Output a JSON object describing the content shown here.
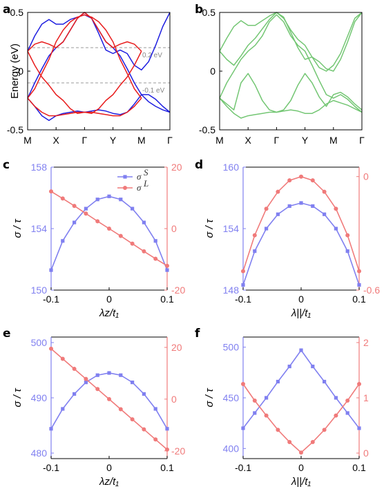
{
  "colors": {
    "blue": "#1e1ee0",
    "red": "#e81c1c",
    "green": "#73c673",
    "left": "#8080f0",
    "right": "#f07a7a",
    "axis": "#000000",
    "dash": "#9a9a9a"
  },
  "chart_data": [
    {
      "panel": "a",
      "type": "line",
      "ylabel": "Energy (eV)",
      "ylim": [
        -0.5,
        0.5
      ],
      "yticks": [
        "0.5",
        "0",
        "-0.5"
      ],
      "kpoints": [
        "M",
        "X",
        "Γ",
        "Y",
        "M",
        "Γ"
      ],
      "annotations": [
        "0.2 eV",
        "-0.1 eV"
      ],
      "series": [
        {
          "color": "blue",
          "x": [
            0,
            0.25,
            0.5,
            0.75,
            1,
            1.25,
            1.5,
            1.75,
            2,
            2.25,
            2.5,
            2.75,
            3,
            3.25,
            3.5,
            3.75,
            4,
            4.25,
            4.5,
            4.75,
            5
          ],
          "values": [
            0.17,
            0.3,
            0.4,
            0.44,
            0.4,
            0.4,
            0.44,
            0.46,
            0.48,
            0.45,
            0.32,
            0.18,
            0.15,
            0.18,
            0.15,
            0.05,
            0.01,
            0.08,
            0.22,
            0.38,
            0.5
          ]
        },
        {
          "color": "blue",
          "x": [
            0,
            0.25,
            0.5,
            0.75,
            1,
            1.25,
            1.5,
            1.75,
            2,
            2.25,
            2.5,
            2.75,
            3,
            3.25,
            3.5,
            3.75,
            4,
            4.25,
            4.5,
            4.75,
            5
          ],
          "values": [
            -0.23,
            -0.1,
            0.02,
            0.13,
            0.2,
            0.25,
            0.35,
            0.45,
            0.5,
            0.45,
            0.35,
            0.25,
            0.2,
            0.13,
            0.02,
            -0.1,
            -0.2,
            -0.26,
            -0.3,
            -0.33,
            -0.35
          ]
        },
        {
          "color": "blue",
          "x": [
            0,
            0.25,
            0.5,
            0.75,
            1,
            1.25,
            1.5,
            1.75,
            2,
            2.25,
            2.5,
            2.75,
            3,
            3.25,
            3.5,
            3.75,
            4,
            4.25,
            4.5,
            4.75,
            5
          ],
          "values": [
            -0.23,
            -0.3,
            -0.38,
            -0.42,
            -0.38,
            -0.36,
            -0.35,
            -0.34,
            -0.35,
            -0.34,
            -0.33,
            -0.34,
            -0.36,
            -0.37,
            -0.35,
            -0.28,
            -0.2,
            -0.2,
            -0.24,
            -0.3,
            -0.35
          ]
        },
        {
          "color": "red",
          "x": [
            0,
            0.25,
            0.5,
            0.75,
            1,
            1.25,
            1.5,
            1.75,
            2,
            2.25,
            2.5,
            2.75,
            3,
            3.25,
            3.5,
            3.75,
            4
          ],
          "values": [
            0.17,
            0.23,
            0.25,
            0.23,
            0.2,
            0.25,
            0.35,
            0.45,
            0.5,
            0.45,
            0.35,
            0.25,
            0.2,
            0.23,
            0.25,
            0.23,
            0.17
          ]
        },
        {
          "color": "red",
          "x": [
            0,
            0.25,
            0.5,
            0.75,
            1,
            1.25,
            1.5,
            1.75,
            2,
            2.25,
            2.5,
            2.75,
            3,
            3.25,
            3.5,
            3.75,
            4
          ],
          "values": [
            -0.23,
            -0.3,
            -0.35,
            -0.38,
            -0.38,
            -0.37,
            -0.36,
            -0.35,
            -0.35,
            -0.35,
            -0.36,
            -0.37,
            -0.38,
            -0.38,
            -0.35,
            -0.3,
            -0.23
          ]
        },
        {
          "color": "red",
          "x": [
            0,
            0.25,
            0.5,
            0.75,
            1,
            1.25,
            1.5,
            1.75,
            2,
            2.25,
            2.5,
            2.75,
            3,
            3.25,
            3.5,
            3.75,
            4
          ],
          "values": [
            0.17,
            0.05,
            -0.05,
            -0.12,
            -0.2,
            -0.25,
            -0.32,
            -0.36,
            -0.35,
            -0.36,
            -0.32,
            -0.25,
            -0.2,
            -0.12,
            -0.05,
            0.05,
            0.17
          ]
        },
        {
          "color": "red",
          "x": [
            0,
            0.25,
            0.5,
            0.75,
            1,
            1.25,
            1.5,
            1.75,
            2,
            2.25,
            2.5,
            2.75,
            3,
            3.25,
            3.5,
            3.75,
            4
          ],
          "values": [
            -0.23,
            -0.15,
            -0.02,
            0.1,
            0.25,
            0.35,
            0.42,
            0.46,
            0.48,
            0.46,
            0.42,
            0.35,
            0.25,
            0.1,
            -0.02,
            -0.15,
            -0.23
          ]
        }
      ]
    },
    {
      "panel": "b",
      "type": "line",
      "ylim": [
        -0.5,
        0.5
      ],
      "yticks": [
        "0.5",
        "0",
        "-0.5"
      ],
      "kpoints": [
        "M",
        "X",
        "Γ",
        "Y",
        "M",
        "Γ"
      ],
      "series": [
        {
          "color": "green",
          "x": [
            0,
            0.25,
            0.5,
            0.75,
            1,
            1.25,
            1.5,
            1.75,
            2,
            2.25,
            2.5,
            2.75,
            3,
            3.25,
            3.5,
            3.75,
            4,
            4.25,
            4.5,
            4.75,
            5
          ],
          "values": [
            0.17,
            0.28,
            0.38,
            0.43,
            0.39,
            0.39,
            0.43,
            0.47,
            0.5,
            0.46,
            0.33,
            0.2,
            0.1,
            0.12,
            0.08,
            0.02,
            0.0,
            0.1,
            0.25,
            0.42,
            0.5
          ]
        },
        {
          "color": "green",
          "x": [
            0,
            0.25,
            0.5,
            0.75,
            1,
            1.25,
            1.5,
            1.75,
            2,
            2.25,
            2.5,
            2.75,
            3,
            3.25,
            3.5,
            3.75,
            4,
            4.25,
            4.5,
            4.75,
            5
          ],
          "values": [
            0.17,
            0.1,
            0.05,
            0.13,
            0.22,
            0.28,
            0.36,
            0.44,
            0.5,
            0.45,
            0.35,
            0.27,
            0.22,
            0.12,
            0.03,
            0.0,
            0.05,
            0.15,
            0.3,
            0.45,
            0.5
          ]
        },
        {
          "color": "green",
          "x": [
            0,
            0.25,
            0.5,
            0.75,
            1,
            1.25,
            1.5,
            1.75,
            2,
            2.25,
            2.5,
            2.75,
            3,
            3.25,
            3.5,
            3.75,
            4,
            4.25,
            4.5,
            4.75,
            5
          ],
          "values": [
            -0.23,
            -0.1,
            0.0,
            0.1,
            0.17,
            0.22,
            0.3,
            0.42,
            0.48,
            0.42,
            0.3,
            0.22,
            0.17,
            0.05,
            -0.08,
            -0.2,
            -0.23,
            -0.2,
            -0.24,
            -0.3,
            -0.35
          ]
        },
        {
          "color": "green",
          "x": [
            0,
            0.25,
            0.5,
            0.75,
            1,
            1.25,
            1.5,
            1.75,
            2,
            2.25,
            2.5,
            2.75,
            3,
            3.25,
            3.5,
            3.75,
            4,
            4.25,
            4.5,
            4.75,
            5
          ],
          "values": [
            -0.23,
            -0.28,
            -0.33,
            -0.1,
            -0.02,
            -0.12,
            -0.25,
            -0.33,
            -0.35,
            -0.33,
            -0.25,
            -0.12,
            -0.02,
            -0.1,
            -0.22,
            -0.3,
            -0.2,
            -0.18,
            -0.22,
            -0.28,
            -0.33
          ]
        },
        {
          "color": "green",
          "x": [
            0,
            0.25,
            0.5,
            0.75,
            1,
            1.25,
            1.5,
            1.75,
            2,
            2.25,
            2.5,
            2.75,
            3,
            3.25,
            3.5,
            3.75,
            4,
            4.25,
            4.5,
            4.75,
            5
          ],
          "values": [
            -0.23,
            -0.3,
            -0.36,
            -0.4,
            -0.38,
            -0.37,
            -0.36,
            -0.35,
            -0.35,
            -0.34,
            -0.33,
            -0.34,
            -0.36,
            -0.36,
            -0.33,
            -0.28,
            -0.25,
            -0.27,
            -0.29,
            -0.32,
            -0.35
          ]
        }
      ]
    },
    {
      "panel": "c",
      "type": "line",
      "xlabel": "λz/t₁",
      "ylabel": "σ / τ",
      "x": [
        -0.1,
        -0.08,
        -0.06,
        -0.04,
        -0.02,
        0,
        0.02,
        0.04,
        0.06,
        0.08,
        0.1
      ],
      "xlim": [
        -0.1,
        0.1
      ],
      "xticks": [
        "-0.1",
        "0",
        "0.1"
      ],
      "ylim_left": [
        150,
        158
      ],
      "yticks_left": [
        "158",
        "154",
        "150"
      ],
      "ylim_right": [
        -20,
        20
      ],
      "yticks_right": [
        "20",
        "0",
        "-20"
      ],
      "legend": [
        "σ",
        "σ"
      ],
      "legend_sup": [
        "S",
        "L"
      ],
      "series": [
        {
          "axis": "left",
          "marker": "square",
          "values": [
            151.3,
            153.2,
            154.4,
            155.3,
            155.9,
            156.1,
            155.9,
            155.3,
            154.4,
            153.2,
            151.3
          ]
        },
        {
          "axis": "right",
          "marker": "circle",
          "values": [
            12.1,
            9.8,
            7.4,
            4.9,
            2.4,
            0,
            -2.4,
            -4.9,
            -7.4,
            -9.8,
            -12.1
          ]
        }
      ]
    },
    {
      "panel": "d",
      "type": "line",
      "xlabel": "λ||/t₁",
      "ylabel": "σ / τ",
      "x": [
        -0.1,
        -0.08,
        -0.06,
        -0.04,
        -0.02,
        0,
        0.02,
        0.04,
        0.06,
        0.08,
        0.1
      ],
      "xlim": [
        -0.1,
        0.1
      ],
      "xticks": [
        "-0.1",
        "0",
        "0.1"
      ],
      "ylim_left": [
        148,
        160
      ],
      "yticks_left": [
        "160",
        "154",
        "148"
      ],
      "ylim_right": [
        -0.6,
        0.05
      ],
      "yticks_right": [
        "0",
        "-0.6"
      ],
      "series": [
        {
          "axis": "left",
          "marker": "square",
          "values": [
            148.5,
            151.8,
            154.0,
            155.4,
            156.2,
            156.5,
            156.2,
            155.4,
            154.0,
            151.8,
            148.5
          ]
        },
        {
          "axis": "right",
          "marker": "circle",
          "values": [
            -0.5,
            -0.31,
            -0.17,
            -0.08,
            -0.02,
            0,
            -0.02,
            -0.08,
            -0.17,
            -0.31,
            -0.5
          ]
        }
      ]
    },
    {
      "panel": "e",
      "type": "line",
      "xlabel": "λz/t₁",
      "ylabel": "σ / τ",
      "x": [
        -0.1,
        -0.08,
        -0.06,
        -0.04,
        -0.02,
        0,
        0.02,
        0.04,
        0.06,
        0.08,
        0.1
      ],
      "xlim": [
        -0.1,
        0.1
      ],
      "xticks": [
        "-0.1",
        "0",
        "0.1"
      ],
      "ylim_left": [
        479,
        501
      ],
      "yticks_left": [
        "500",
        "490",
        "480"
      ],
      "ylim_right": [
        -23,
        24
      ],
      "yticks_right": [
        "20",
        "0",
        "-20"
      ],
      "series": [
        {
          "axis": "left",
          "marker": "square",
          "values": [
            484.4,
            488.0,
            490.7,
            492.8,
            494.1,
            494.5,
            494.1,
            492.8,
            490.7,
            488.0,
            484.4
          ]
        },
        {
          "axis": "right",
          "marker": "circle",
          "values": [
            19.5,
            15.6,
            11.7,
            7.8,
            3.9,
            0,
            -3.9,
            -7.8,
            -11.7,
            -15.6,
            -19.5
          ]
        }
      ]
    },
    {
      "panel": "f",
      "type": "line",
      "xlabel": "λ||/t₁",
      "ylabel": "σ / τ",
      "x": [
        -0.1,
        -0.08,
        -0.06,
        -0.04,
        -0.02,
        0,
        0.02,
        0.04,
        0.06,
        0.08,
        0.1
      ],
      "xlim": [
        -0.1,
        0.1
      ],
      "xticks": [
        "-0.1",
        "0",
        "0.1"
      ],
      "ylim_left": [
        390,
        510
      ],
      "yticks_left": [
        "500",
        "450",
        "400"
      ],
      "ylim_right": [
        -0.1,
        2.1
      ],
      "yticks_right": [
        "2",
        "1",
        "0"
      ],
      "series": [
        {
          "axis": "left",
          "marker": "square",
          "values": [
            420,
            435,
            450,
            466,
            481,
            497,
            481,
            466,
            450,
            435,
            420
          ]
        },
        {
          "axis": "right",
          "marker": "circle",
          "values": [
            1.25,
            0.95,
            0.68,
            0.42,
            0.2,
            0.01,
            0.2,
            0.42,
            0.68,
            0.95,
            1.25
          ]
        }
      ]
    }
  ]
}
